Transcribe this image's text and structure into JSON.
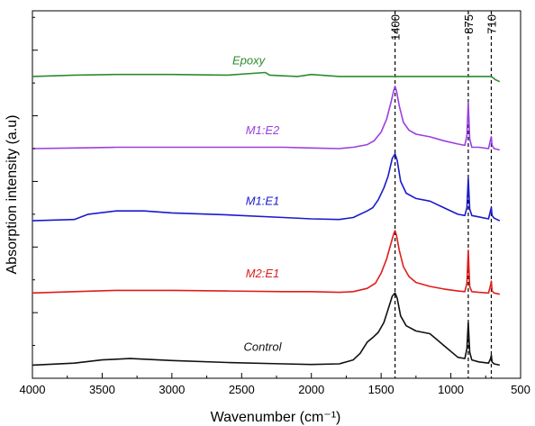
{
  "chart_data": {
    "type": "line",
    "title": "",
    "xlabel": "Wavenumber (cm⁻¹)",
    "ylabel": "Absorption intensity (a.u)",
    "xlim": [
      4000,
      500
    ],
    "x_reversed": true,
    "x_ticks": [
      4000,
      3500,
      3000,
      2500,
      2000,
      1500,
      1000,
      500
    ],
    "y_ticks_labeled": false,
    "grid": false,
    "legend": "none",
    "reference_lines": [
      {
        "x": 1400,
        "label": "1400",
        "style": "dashed"
      },
      {
        "x": 875,
        "label": "875",
        "style": "dashed"
      },
      {
        "x": 710,
        "label": "710",
        "style": "dashed"
      }
    ],
    "series": [
      {
        "name": "Epoxy",
        "color": "#2e8b2e",
        "baseline": 4.6,
        "points": [
          [
            4000,
            4.6
          ],
          [
            3700,
            4.62
          ],
          [
            3400,
            4.63
          ],
          [
            3000,
            4.63
          ],
          [
            2600,
            4.62
          ],
          [
            2330,
            4.66
          ],
          [
            2300,
            4.62
          ],
          [
            2100,
            4.6
          ],
          [
            2000,
            4.63
          ],
          [
            1800,
            4.6
          ],
          [
            1500,
            4.6
          ],
          [
            1400,
            4.6
          ],
          [
            1200,
            4.6
          ],
          [
            1000,
            4.6
          ],
          [
            875,
            4.6
          ],
          [
            710,
            4.6
          ],
          [
            680,
            4.55
          ],
          [
            650,
            4.52
          ]
        ]
      },
      {
        "name": "M1:E2",
        "color": "#9a3fe0",
        "baseline": 3.5,
        "points": [
          [
            4000,
            3.5
          ],
          [
            3700,
            3.51
          ],
          [
            3400,
            3.52
          ],
          [
            3000,
            3.52
          ],
          [
            2600,
            3.52
          ],
          [
            2200,
            3.52
          ],
          [
            2000,
            3.51
          ],
          [
            1800,
            3.5
          ],
          [
            1700,
            3.52
          ],
          [
            1600,
            3.56
          ],
          [
            1550,
            3.62
          ],
          [
            1500,
            3.75
          ],
          [
            1460,
            3.95
          ],
          [
            1430,
            4.2
          ],
          [
            1410,
            4.38
          ],
          [
            1400,
            4.45
          ],
          [
            1390,
            4.38
          ],
          [
            1370,
            4.15
          ],
          [
            1340,
            3.9
          ],
          [
            1300,
            3.78
          ],
          [
            1250,
            3.72
          ],
          [
            1150,
            3.68
          ],
          [
            1050,
            3.62
          ],
          [
            950,
            3.57
          ],
          [
            900,
            3.55
          ],
          [
            885,
            3.7
          ],
          [
            875,
            4.2
          ],
          [
            865,
            3.65
          ],
          [
            850,
            3.52
          ],
          [
            800,
            3.52
          ],
          [
            730,
            3.5
          ],
          [
            715,
            3.64
          ],
          [
            710,
            3.68
          ],
          [
            705,
            3.55
          ],
          [
            690,
            3.5
          ],
          [
            650,
            3.48
          ]
        ]
      },
      {
        "name": "M1:E1",
        "color": "#1a1acd",
        "baseline": 2.4,
        "points": [
          [
            4000,
            2.4
          ],
          [
            3700,
            2.42
          ],
          [
            3600,
            2.5
          ],
          [
            3400,
            2.55
          ],
          [
            3200,
            2.55
          ],
          [
            3000,
            2.52
          ],
          [
            2600,
            2.49
          ],
          [
            2200,
            2.45
          ],
          [
            2000,
            2.43
          ],
          [
            1800,
            2.42
          ],
          [
            1700,
            2.45
          ],
          [
            1600,
            2.55
          ],
          [
            1560,
            2.6
          ],
          [
            1520,
            2.72
          ],
          [
            1480,
            2.9
          ],
          [
            1450,
            3.08
          ],
          [
            1420,
            3.35
          ],
          [
            1400,
            3.42
          ],
          [
            1385,
            3.32
          ],
          [
            1360,
            3.0
          ],
          [
            1320,
            2.82
          ],
          [
            1250,
            2.74
          ],
          [
            1150,
            2.7
          ],
          [
            1050,
            2.6
          ],
          [
            950,
            2.5
          ],
          [
            900,
            2.48
          ],
          [
            885,
            2.6
          ],
          [
            875,
            3.05
          ],
          [
            865,
            2.58
          ],
          [
            850,
            2.48
          ],
          [
            800,
            2.46
          ],
          [
            730,
            2.43
          ],
          [
            715,
            2.56
          ],
          [
            710,
            2.6
          ],
          [
            705,
            2.48
          ],
          [
            690,
            2.44
          ],
          [
            650,
            2.4
          ]
        ]
      },
      {
        "name": "M2:E1",
        "color": "#e01c1c",
        "baseline": 1.3,
        "points": [
          [
            4000,
            1.3
          ],
          [
            3700,
            1.32
          ],
          [
            3400,
            1.34
          ],
          [
            3000,
            1.34
          ],
          [
            2600,
            1.33
          ],
          [
            2200,
            1.32
          ],
          [
            2000,
            1.32
          ],
          [
            1800,
            1.31
          ],
          [
            1700,
            1.32
          ],
          [
            1600,
            1.37
          ],
          [
            1540,
            1.45
          ],
          [
            1500,
            1.6
          ],
          [
            1460,
            1.82
          ],
          [
            1430,
            2.05
          ],
          [
            1410,
            2.2
          ],
          [
            1400,
            2.25
          ],
          [
            1390,
            2.18
          ],
          [
            1370,
            1.95
          ],
          [
            1340,
            1.7
          ],
          [
            1300,
            1.55
          ],
          [
            1250,
            1.46
          ],
          [
            1150,
            1.4
          ],
          [
            1050,
            1.36
          ],
          [
            950,
            1.33
          ],
          [
            900,
            1.32
          ],
          [
            885,
            1.45
          ],
          [
            875,
            1.95
          ],
          [
            865,
            1.4
          ],
          [
            850,
            1.32
          ],
          [
            800,
            1.31
          ],
          [
            730,
            1.3
          ],
          [
            715,
            1.42
          ],
          [
            710,
            1.48
          ],
          [
            705,
            1.33
          ],
          [
            690,
            1.3
          ],
          [
            650,
            1.28
          ]
        ]
      },
      {
        "name": "Control",
        "color": "#111111",
        "baseline": 0.2,
        "points": [
          [
            4000,
            0.2
          ],
          [
            3700,
            0.23
          ],
          [
            3500,
            0.28
          ],
          [
            3300,
            0.3
          ],
          [
            3000,
            0.27
          ],
          [
            2600,
            0.24
          ],
          [
            2200,
            0.22
          ],
          [
            2000,
            0.21
          ],
          [
            1800,
            0.22
          ],
          [
            1700,
            0.28
          ],
          [
            1650,
            0.38
          ],
          [
            1600,
            0.55
          ],
          [
            1560,
            0.62
          ],
          [
            1520,
            0.7
          ],
          [
            1480,
            0.85
          ],
          [
            1450,
            1.05
          ],
          [
            1420,
            1.25
          ],
          [
            1400,
            1.3
          ],
          [
            1385,
            1.22
          ],
          [
            1360,
            0.95
          ],
          [
            1320,
            0.8
          ],
          [
            1250,
            0.72
          ],
          [
            1150,
            0.68
          ],
          [
            1050,
            0.5
          ],
          [
            950,
            0.32
          ],
          [
            900,
            0.3
          ],
          [
            885,
            0.45
          ],
          [
            875,
            0.85
          ],
          [
            865,
            0.4
          ],
          [
            850,
            0.28
          ],
          [
            800,
            0.25
          ],
          [
            730,
            0.23
          ],
          [
            715,
            0.3
          ],
          [
            710,
            0.35
          ],
          [
            705,
            0.25
          ],
          [
            690,
            0.22
          ],
          [
            650,
            0.2
          ]
        ]
      }
    ],
    "series_labels": [
      {
        "text": "Epoxy",
        "x": 2450,
        "y": 4.78
      },
      {
        "text": "M1:E2",
        "x": 2350,
        "y": 3.72
      },
      {
        "text": "M1:E1",
        "x": 2350,
        "y": 2.64
      },
      {
        "text": "M2:E1",
        "x": 2350,
        "y": 1.54
      },
      {
        "text": "Control",
        "x": 2350,
        "y": 0.42
      }
    ],
    "ylim": [
      0,
      5.6
    ]
  }
}
